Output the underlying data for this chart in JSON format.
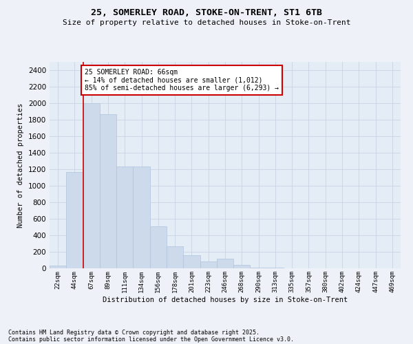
{
  "title_line1": "25, SOMERLEY ROAD, STOKE-ON-TRENT, ST1 6TB",
  "title_line2": "Size of property relative to detached houses in Stoke-on-Trent",
  "xlabel": "Distribution of detached houses by size in Stoke-on-Trent",
  "ylabel": "Number of detached properties",
  "categories": [
    "22sqm",
    "44sqm",
    "67sqm",
    "89sqm",
    "111sqm",
    "134sqm",
    "156sqm",
    "178sqm",
    "201sqm",
    "223sqm",
    "246sqm",
    "268sqm",
    "290sqm",
    "313sqm",
    "335sqm",
    "357sqm",
    "380sqm",
    "402sqm",
    "424sqm",
    "447sqm",
    "469sqm"
  ],
  "values": [
    30,
    1170,
    2000,
    1870,
    1230,
    1230,
    510,
    270,
    155,
    80,
    115,
    45,
    10,
    5,
    2,
    2,
    2,
    2,
    2,
    2,
    2
  ],
  "bar_color": "#ccdaeb",
  "bar_edge_color": "#b0c4de",
  "grid_color": "#c8d4e4",
  "vline_x": 1.5,
  "vline_color": "#cc0000",
  "annotation_text": "25 SOMERLEY ROAD: 66sqm\n← 14% of detached houses are smaller (1,012)\n85% of semi-detached houses are larger (6,293) →",
  "annotation_box_color": "#ffffff",
  "annotation_box_edge_color": "#cc0000",
  "ylim": [
    0,
    2500
  ],
  "yticks": [
    0,
    200,
    400,
    600,
    800,
    1000,
    1200,
    1400,
    1600,
    1800,
    2000,
    2200,
    2400
  ],
  "footnote1": "Contains HM Land Registry data © Crown copyright and database right 2025.",
  "footnote2": "Contains public sector information licensed under the Open Government Licence v3.0.",
  "bg_color": "#eef2f8",
  "plot_bg_color": "#e4ecf6"
}
